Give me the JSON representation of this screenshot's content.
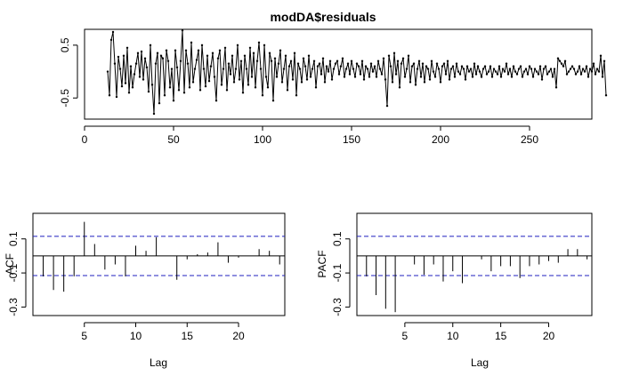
{
  "chart_data": [
    {
      "id": "residuals",
      "type": "line",
      "title": "modDA$residuals",
      "xlabel": "",
      "ylabel": "",
      "xlim": [
        0,
        285
      ],
      "ylim": [
        -0.9,
        0.8
      ],
      "x_ticks": [
        0,
        50,
        100,
        150,
        200,
        250
      ],
      "y_ticks": [
        -0.5,
        0.5
      ],
      "x_start": 13,
      "y": [
        0.0,
        -0.45,
        0.6,
        0.75,
        0.15,
        -0.48,
        0.28,
        0.05,
        -0.28,
        0.3,
        -0.22,
        0.45,
        -0.4,
        0.1,
        -0.3,
        -0.05,
        0.15,
        0.35,
        -0.1,
        0.38,
        -0.15,
        0.25,
        0.08,
        -0.38,
        0.5,
        -0.25,
        -0.8,
        0.15,
        0.35,
        -0.6,
        0.3,
        0.25,
        -0.45,
        0.4,
        0.2,
        -0.3,
        0.05,
        -0.55,
        0.4,
        0.08,
        -0.35,
        0.2,
        0.78,
        -0.4,
        0.4,
        0.15,
        -0.3,
        0.55,
        -0.2,
        0.05,
        0.22,
        0.4,
        -0.35,
        0.5,
        0.05,
        -0.28,
        0.3,
        -0.18,
        0.1,
        0.35,
        -0.1,
        -0.55,
        0.25,
        0.4,
        -0.25,
        0.05,
        0.45,
        -0.35,
        0.15,
        -0.05,
        0.3,
        -0.2,
        0.05,
        0.5,
        -0.15,
        0.2,
        -0.4,
        0.3,
        0.05,
        -0.25,
        0.45,
        -0.1,
        0.35,
        -0.3,
        0.2,
        0.55,
        0.05,
        -0.45,
        0.5,
        -0.1,
        -0.3,
        0.35,
        0.2,
        -0.55,
        0.25,
        -0.1,
        0.15,
        0.4,
        -0.2,
        0.05,
        0.3,
        -0.35,
        0.1,
        0.2,
        -0.15,
        0.35,
        -0.45,
        0.15,
        0.05,
        -0.2,
        0.25,
        0.1,
        -0.15,
        0.3,
        -0.1,
        0.05,
        0.2,
        -0.3,
        0.1,
        0.15,
        -0.05,
        0.25,
        -0.2,
        0.1,
        0.0,
        0.2,
        -0.15,
        0.05,
        0.15,
        0.2,
        -0.05,
        0.1,
        0.25,
        -0.1,
        0.05,
        0.15,
        -0.05,
        0.2,
        0.05,
        -0.1,
        0.15,
        0.1,
        -0.05,
        0.2,
        -0.15,
        0.1,
        0.05,
        -0.1,
        0.15,
        0.0,
        0.1,
        -0.1,
        0.2,
        0.05,
        -0.05,
        0.25,
        -0.15,
        -0.65,
        0.3,
        0.1,
        -0.2,
        0.35,
        -0.05,
        0.2,
        -0.3,
        0.15,
        0.25,
        -0.1,
        0.05,
        0.3,
        -0.2,
        0.1,
        0.15,
        -0.25,
        0.05,
        0.2,
        -0.1,
        0.15,
        -0.2,
        0.1,
        0.05,
        -0.15,
        0.2,
        0.0,
        -0.1,
        0.15,
        0.05,
        -0.2,
        0.1,
        0.15,
        -0.05,
        0.2,
        -0.15,
        0.05,
        0.1,
        -0.1,
        0.15,
        0.0,
        -0.05,
        0.1,
        0.05,
        -0.15,
        0.1,
        0.0,
        0.05,
        -0.1,
        0.15,
        -0.05,
        0.1,
        0.0,
        -0.1,
        0.05,
        0.1,
        -0.05,
        0.0,
        0.1,
        -0.1,
        0.05,
        0.0,
        -0.05,
        0.1,
        -0.1,
        0.05,
        0.0,
        0.15,
        -0.05,
        0.05,
        -0.1,
        0.1,
        0.0,
        -0.05,
        0.05,
        0.1,
        -0.1,
        0.0,
        0.05,
        -0.05,
        0.1,
        0.05,
        -0.1,
        0.05,
        0.0,
        -0.05,
        0.1,
        -0.15,
        0.05,
        0.1,
        -0.05,
        0.0,
        0.05,
        -0.1,
        0.05,
        -0.3,
        0.25,
        0.2,
        0.15,
        0.1,
        0.2,
        -0.05,
        0.0,
        0.05,
        0.1,
        0.05,
        -0.05,
        0.0,
        0.1,
        -0.05,
        0.05,
        0.0,
        0.1,
        -0.1,
        0.05,
        0.0,
        0.15,
        -0.05,
        0.05,
        0.0,
        0.3,
        -0.1,
        0.2,
        -0.45
      ]
    },
    {
      "id": "acf",
      "type": "bar",
      "title": "",
      "xlabel": "Lag",
      "ylabel": "ACF",
      "xlim": [
        0,
        24.5
      ],
      "ylim": [
        -0.35,
        0.25
      ],
      "x_ticks": [
        5,
        10,
        15,
        20
      ],
      "y_ticks": [
        -0.3,
        -0.1,
        0.1
      ],
      "ci": 0.115,
      "lags": [
        1,
        2,
        3,
        4,
        5,
        6,
        7,
        8,
        9,
        10,
        11,
        12,
        13,
        14,
        15,
        16,
        17,
        18,
        19,
        20,
        21,
        22,
        23,
        24
      ],
      "values": [
        -0.12,
        -0.2,
        -0.21,
        -0.12,
        0.2,
        0.07,
        -0.08,
        -0.05,
        -0.12,
        0.06,
        0.03,
        0.11,
        0.0,
        -0.14,
        -0.02,
        0.01,
        0.02,
        0.08,
        -0.04,
        -0.01,
        0.0,
        0.04,
        0.03,
        -0.05
      ]
    },
    {
      "id": "pacf",
      "type": "bar",
      "title": "",
      "xlabel": "Lag",
      "ylabel": "PACF",
      "xlim": [
        0,
        24.5
      ],
      "ylim": [
        -0.35,
        0.25
      ],
      "x_ticks": [
        5,
        10,
        15,
        20
      ],
      "y_ticks": [
        -0.3,
        -0.1,
        0.1
      ],
      "ci": 0.115,
      "lags": [
        1,
        2,
        3,
        4,
        5,
        6,
        7,
        8,
        9,
        10,
        11,
        12,
        13,
        14,
        15,
        16,
        17,
        18,
        19,
        20,
        21,
        22,
        23,
        24
      ],
      "values": [
        -0.12,
        -0.23,
        -0.31,
        -0.33,
        0.0,
        -0.05,
        -0.11,
        -0.05,
        -0.15,
        -0.09,
        -0.16,
        0.0,
        -0.02,
        -0.09,
        -0.06,
        -0.06,
        -0.13,
        -0.06,
        -0.05,
        -0.03,
        -0.04,
        0.04,
        0.04,
        -0.02
      ]
    }
  ]
}
